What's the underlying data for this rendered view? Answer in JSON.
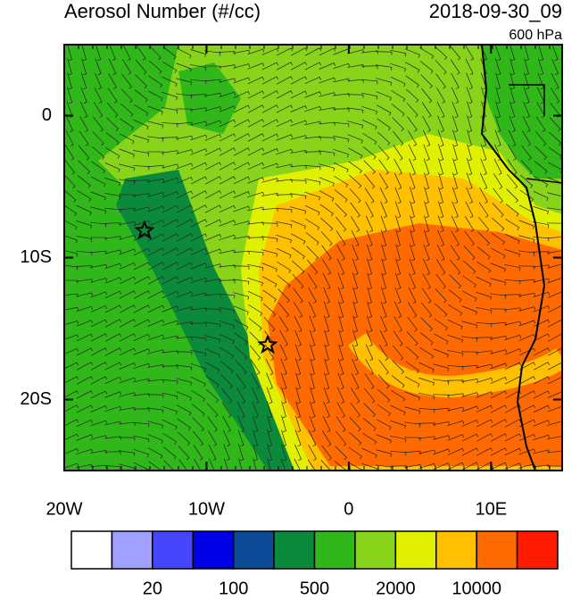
{
  "chart_data": {
    "type": "map",
    "title": "Aerosol Number (#/cc)",
    "subtitle": "2018-09-30_09",
    "level_label": "600 hPa",
    "xlim": [
      -20,
      15
    ],
    "ylim": [
      -25,
      5
    ],
    "xticks": [
      {
        "value": -20,
        "label": "20W"
      },
      {
        "value": -10,
        "label": "10W"
      },
      0,
      {
        "value": 10,
        "label": "10E"
      }
    ],
    "yticks": [
      0,
      {
        "value": -10,
        "label": "10S"
      },
      {
        "value": -20,
        "label": "20S"
      }
    ],
    "colorbar": {
      "colors": [
        "#ffffff",
        "#a0a0ff",
        "#4646ff",
        "#0000e6",
        "#0a4a96",
        "#0c8a3c",
        "#30b81a",
        "#88d41a",
        "#e0f000",
        "#ffc000",
        "#ff6a00",
        "#ff1a00"
      ],
      "labels": [
        "20",
        "100",
        "500",
        "2000",
        "10000"
      ]
    }
  }
}
